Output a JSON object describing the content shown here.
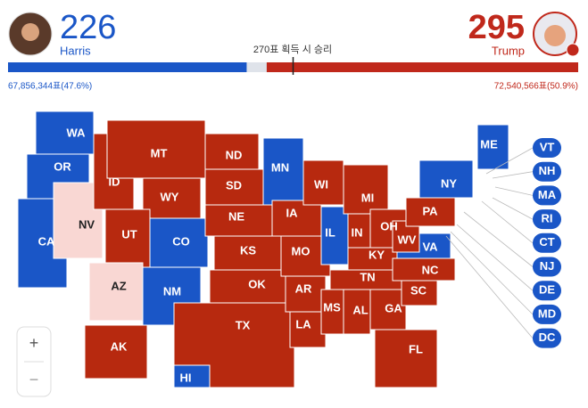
{
  "header": {
    "left": {
      "votes": 226,
      "name": "Harris",
      "color": "#1a56c7",
      "popular": "67,856,344표(47.6%)"
    },
    "right": {
      "votes": 295,
      "name": "Trump",
      "color": "#c0281b",
      "popular": "72,540,566표(50.9%)"
    },
    "threshold": {
      "value": 270,
      "label": "270표 획득 시 승리"
    }
  },
  "states": [
    {
      "label": "WA",
      "color": "#1a56c7"
    },
    {
      "label": "OR",
      "color": "#1a56c7"
    },
    {
      "label": "CA",
      "color": "#1a56c7"
    },
    {
      "label": "NV",
      "color": "#f9d7d3"
    },
    {
      "label": "ID",
      "color": "#b7290f"
    },
    {
      "label": "MT",
      "color": "#b7290f"
    },
    {
      "label": "WY",
      "color": "#b7290f"
    },
    {
      "label": "UT",
      "color": "#b7290f"
    },
    {
      "label": "CO",
      "color": "#1a56c7"
    },
    {
      "label": "AZ",
      "color": "#f9d7d3"
    },
    {
      "label": "NM",
      "color": "#1a56c7"
    },
    {
      "label": "ND",
      "color": "#b7290f"
    },
    {
      "label": "SD",
      "color": "#b7290f"
    },
    {
      "label": "NE",
      "color": "#b7290f"
    },
    {
      "label": "KS",
      "color": "#b7290f"
    },
    {
      "label": "OK",
      "color": "#b7290f"
    },
    {
      "label": "TX",
      "color": "#b7290f"
    },
    {
      "label": "MN",
      "color": "#1a56c7"
    },
    {
      "label": "IA",
      "color": "#b7290f"
    },
    {
      "label": "MO",
      "color": "#b7290f"
    },
    {
      "label": "AR",
      "color": "#b7290f"
    },
    {
      "label": "LA",
      "color": "#b7290f"
    },
    {
      "label": "WI",
      "color": "#b7290f"
    },
    {
      "label": "IL",
      "color": "#1a56c7"
    },
    {
      "label": "MI",
      "color": "#b7290f"
    },
    {
      "label": "IN",
      "color": "#b7290f"
    },
    {
      "label": "OH",
      "color": "#b7290f"
    },
    {
      "label": "KY",
      "color": "#b7290f"
    },
    {
      "label": "TN",
      "color": "#b7290f"
    },
    {
      "label": "MS",
      "color": "#b7290f"
    },
    {
      "label": "AL",
      "color": "#b7290f"
    },
    {
      "label": "GA",
      "color": "#b7290f"
    },
    {
      "label": "FL",
      "color": "#b7290f"
    },
    {
      "label": "SC",
      "color": "#b7290f"
    },
    {
      "label": "NC",
      "color": "#b7290f"
    },
    {
      "label": "VA",
      "color": "#1a56c7"
    },
    {
      "label": "WV",
      "color": "#b7290f"
    },
    {
      "label": "PA",
      "color": "#b7290f"
    },
    {
      "label": "NY",
      "color": "#1a56c7"
    },
    {
      "label": "ME",
      "color": "#1a56c7"
    },
    {
      "label": "AK",
      "color": "#b7290f"
    },
    {
      "label": "HI",
      "color": "#1a56c7"
    }
  ],
  "small_states": [
    {
      "label": "VT",
      "color": "#1a56c7"
    },
    {
      "label": "NH",
      "color": "#1a56c7"
    },
    {
      "label": "MA",
      "color": "#1a56c7"
    },
    {
      "label": "RI",
      "color": "#1a56c7"
    },
    {
      "label": "CT",
      "color": "#1a56c7"
    },
    {
      "label": "NJ",
      "color": "#1a56c7"
    },
    {
      "label": "DE",
      "color": "#1a56c7"
    },
    {
      "label": "MD",
      "color": "#1a56c7"
    },
    {
      "label": "DC",
      "color": "#1a56c7"
    }
  ],
  "zoom": {
    "in": "+",
    "out": "−"
  }
}
